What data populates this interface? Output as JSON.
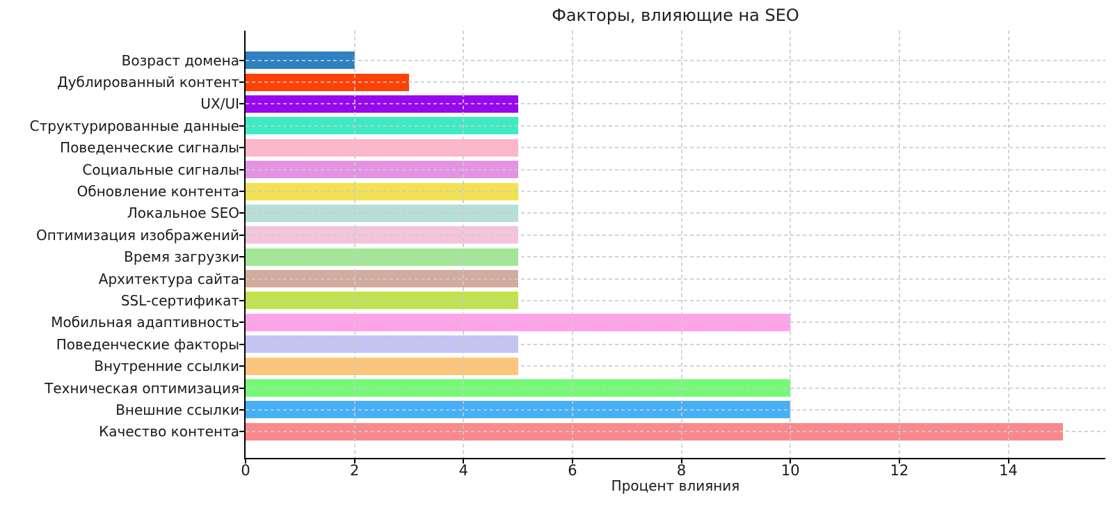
{
  "chart_data": {
    "type": "bar",
    "orientation": "horizontal",
    "title": "Факторы, влияющие на SEO",
    "xlabel": "Процент влияния",
    "ylabel": "",
    "legend": "none",
    "grid": "dashed-both-above-bars",
    "grid_color": "#cbcbcb",
    "axis_color": "#000000",
    "background_color": "#ffffff",
    "xticks": [
      0,
      2,
      4,
      6,
      8,
      10,
      12,
      14
    ],
    "xlim": [
      0,
      15.78
    ],
    "categories": [
      "Возраст домена",
      "Дублированный контент",
      "UX/UI",
      "Структурированные данные",
      "Поведенческие сигналы",
      "Социальные сигналы",
      "Обновление контента",
      "Локальное SEO",
      "Оптимизация изображений",
      "Время загрузки",
      "Архитектура сайта",
      "SSL-сертификат",
      "Мобильная адаптивность",
      "Поведенческие факторы",
      "Внутренние ссылки",
      "Техническая оптимизация",
      "Внешние ссылки",
      "Качество контента"
    ],
    "values": [
      2,
      3,
      5,
      5,
      5,
      5,
      5,
      5,
      5,
      5,
      5,
      5,
      10,
      5,
      5,
      10,
      10,
      15
    ],
    "bar_colors": [
      "#2d80c3",
      "#fe4104",
      "#9707f0",
      "#3eeac3",
      "#ffb6c8",
      "#e492e4",
      "#f2e253",
      "#b7ded8",
      "#f3c5dc",
      "#a1e795",
      "#d2ac9e",
      "#bfe24d",
      "#ffa2e9",
      "#c5c3f3",
      "#fec478",
      "#74fa75",
      "#45b0f7",
      "#fa898d"
    ]
  }
}
